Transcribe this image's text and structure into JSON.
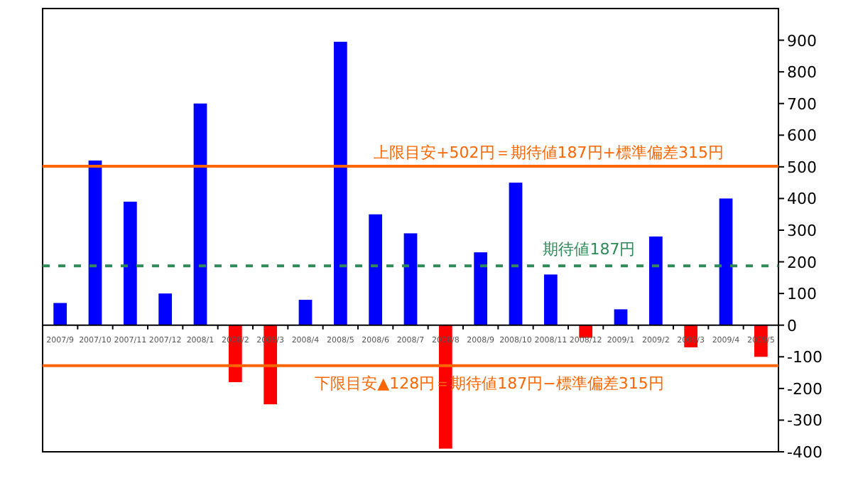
{
  "chart_data": {
    "type": "bar",
    "categories": [
      "2007/9",
      "2007/10",
      "2007/11",
      "2007/12",
      "2008/1",
      "2008/2",
      "2008/3",
      "2008/4",
      "2008/5",
      "2008/6",
      "2008/7",
      "2008/8",
      "2008/9",
      "2008/10",
      "2008/11",
      "2008/12",
      "2009/1",
      "2009/2",
      "2009/3",
      "2009/4",
      "2009/5"
    ],
    "values": [
      70,
      520,
      390,
      100,
      700,
      -180,
      -250,
      80,
      895,
      350,
      290,
      -390,
      230,
      450,
      160,
      -40,
      50,
      280,
      -70,
      400,
      -100
    ],
    "colors": [
      "#0000ff",
      "#0000ff",
      "#0000ff",
      "#0000ff",
      "#0000ff",
      "#ff0000",
      "#ff0000",
      "#0000ff",
      "#0000ff",
      "#0000ff",
      "#0000ff",
      "#ff0000",
      "#0000ff",
      "#0000ff",
      "#0000ff",
      "#ff0000",
      "#0000ff",
      "#0000ff",
      "#ff0000",
      "#0000ff",
      "#ff0000"
    ],
    "ylim": [
      -400,
      1000
    ],
    "yticks": [
      -400,
      -300,
      -200,
      -100,
      0,
      100,
      200,
      300,
      400,
      500,
      600,
      700,
      800,
      900
    ],
    "ref_lines": [
      {
        "axis": "y",
        "value": 502,
        "label": "上限目安+502円＝期待値187円+標準偏差315円",
        "color": "#ff6600",
        "line_style": "solid"
      },
      {
        "axis": "y",
        "value": 187,
        "label": "期待値187円",
        "color": "#2e8b57",
        "line_style": "dashed"
      },
      {
        "axis": "y",
        "value": -128,
        "label": "下限目安▲128円＝期待値187円−標準偏差315円",
        "color": "#ff6600",
        "line_style": "solid"
      }
    ],
    "grid": false
  }
}
